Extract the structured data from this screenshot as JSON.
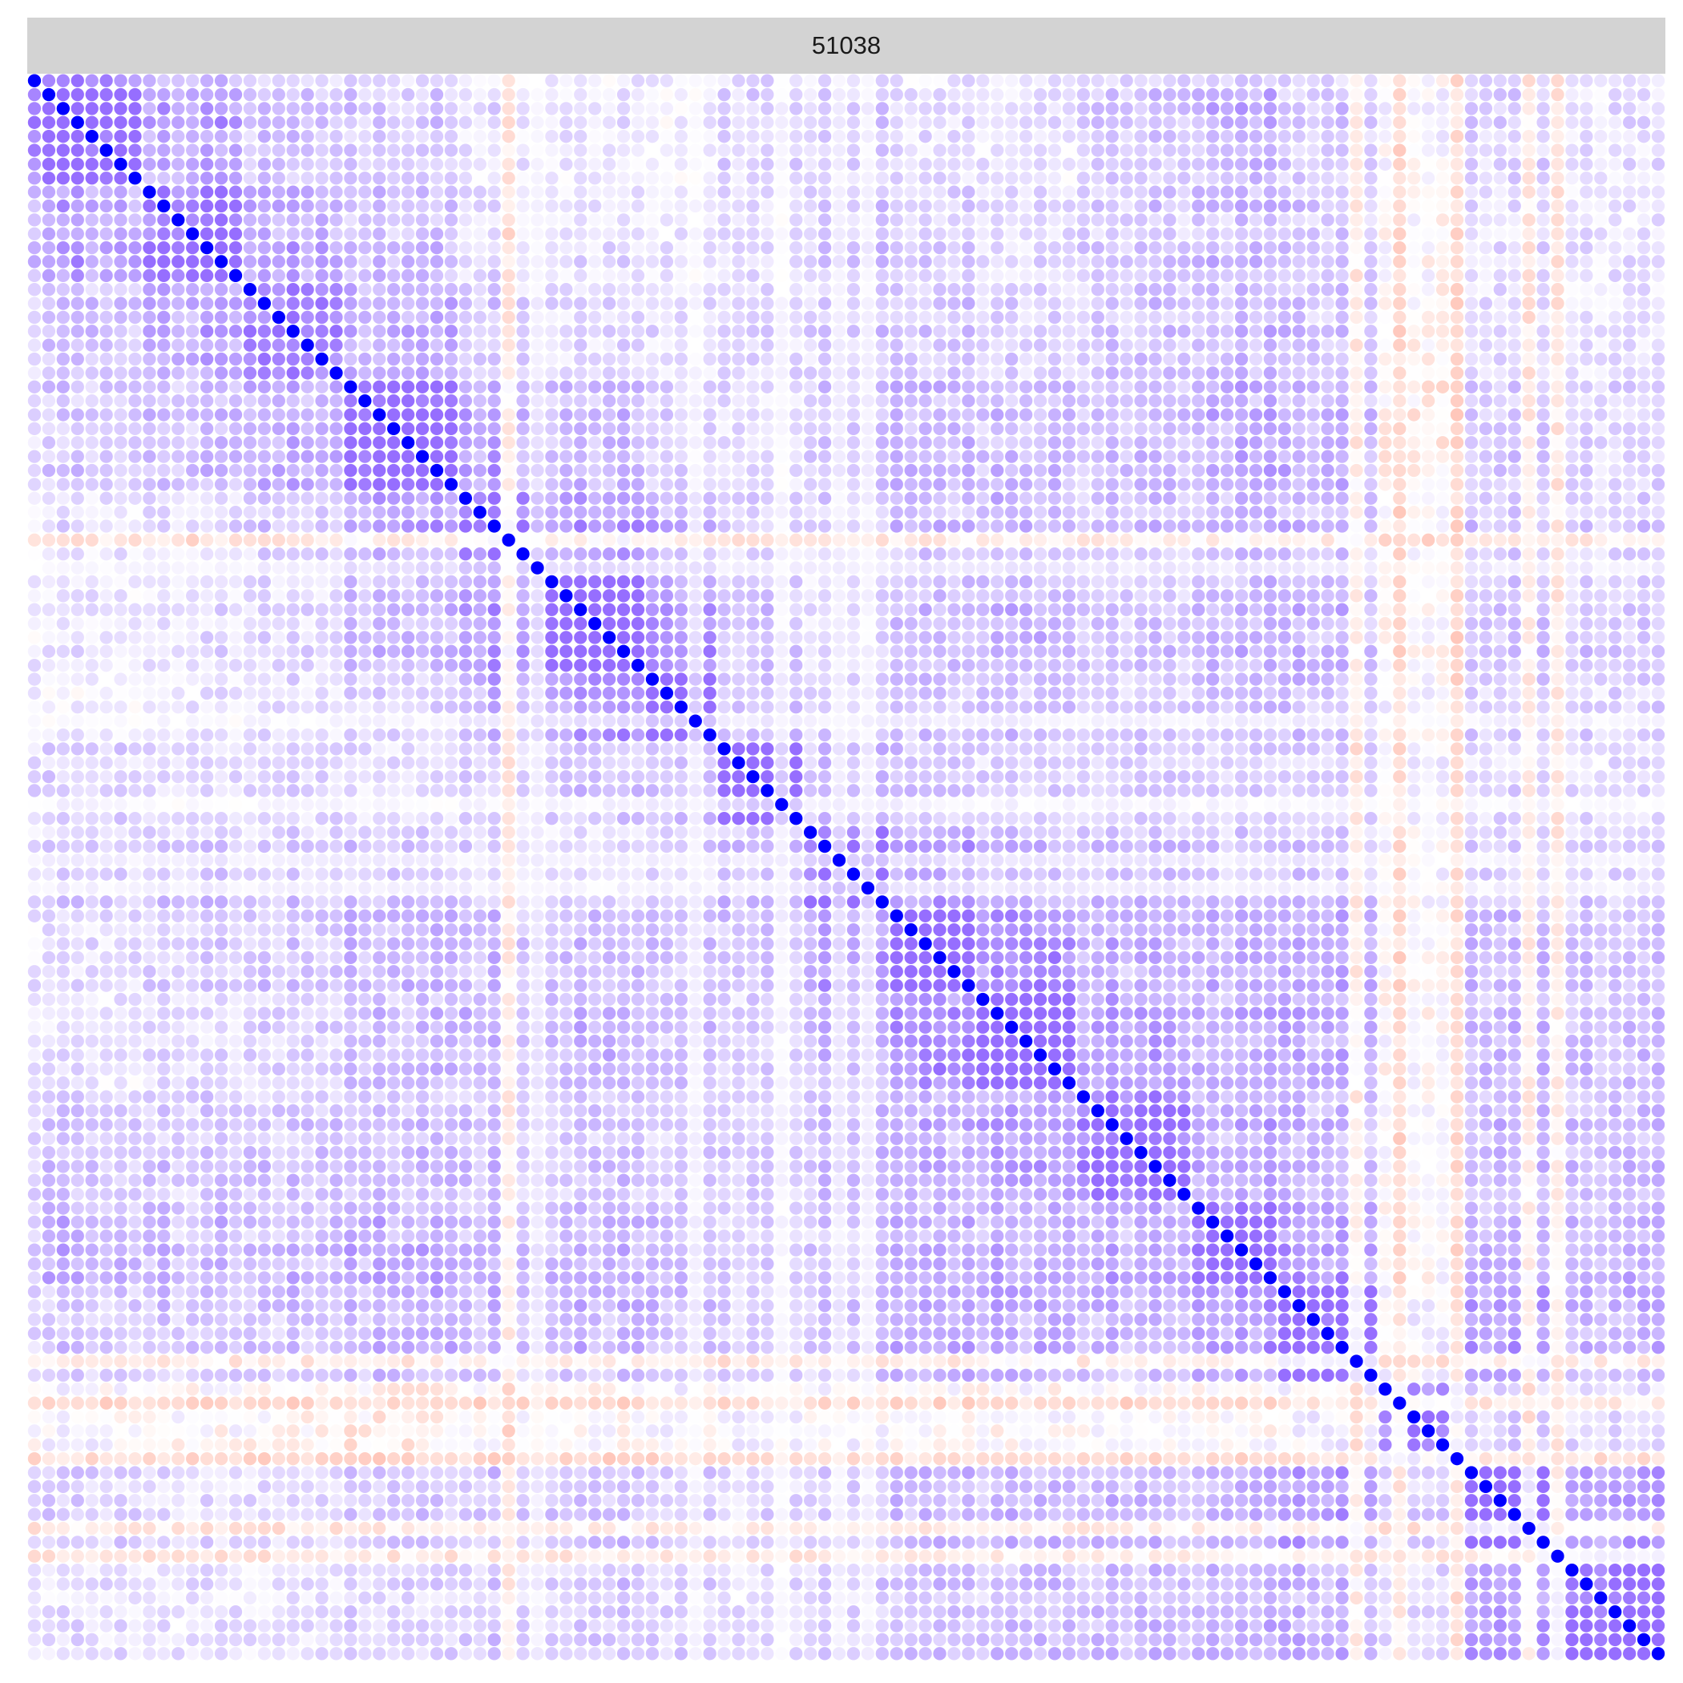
{
  "chart_data": {
    "type": "heatmap",
    "title": "",
    "facet_label": "51038",
    "marker": "circle",
    "matrix_size": 114,
    "value_range": [
      -1,
      1
    ],
    "diagonal_value": 1,
    "color_scale": {
      "low": "#ff0000",
      "mid": "#ffffff",
      "high": "#0000ff"
    },
    "axes_visible": false,
    "grid": false,
    "legend": "none",
    "block_boundaries": [
      0,
      8,
      15,
      22,
      30,
      36,
      43,
      48,
      54,
      60,
      66,
      73,
      81,
      87,
      94,
      100,
      106,
      114
    ],
    "block_strength": [
      [
        1.0,
        0.55,
        0.4,
        0.3,
        0.2,
        0.15,
        0.1,
        0.25,
        0.3,
        0.2,
        0.15,
        0.35,
        0.45,
        0.3,
        0.05,
        0.25,
        0.2
      ],
      [
        0.55,
        1.0,
        0.6,
        0.4,
        0.25,
        0.2,
        0.15,
        0.2,
        0.35,
        0.3,
        0.2,
        0.35,
        0.45,
        0.35,
        0.0,
        0.2,
        0.2
      ],
      [
        0.4,
        0.6,
        1.0,
        0.55,
        0.35,
        0.25,
        0.2,
        0.25,
        0.35,
        0.35,
        0.3,
        0.4,
        0.45,
        0.4,
        -0.05,
        0.25,
        0.2
      ],
      [
        0.3,
        0.4,
        0.55,
        1.0,
        0.55,
        0.4,
        0.25,
        0.2,
        0.35,
        0.4,
        0.35,
        0.4,
        0.5,
        0.45,
        -0.1,
        0.3,
        0.25
      ],
      [
        0.2,
        0.25,
        0.35,
        0.55,
        1.0,
        0.6,
        0.45,
        0.25,
        0.3,
        0.4,
        0.4,
        0.4,
        0.45,
        0.45,
        0.0,
        0.35,
        0.3
      ],
      [
        0.15,
        0.2,
        0.25,
        0.4,
        0.6,
        1.0,
        0.55,
        0.3,
        0.25,
        0.35,
        0.4,
        0.35,
        0.4,
        0.4,
        0.0,
        0.3,
        0.3
      ],
      [
        0.1,
        0.15,
        0.2,
        0.25,
        0.45,
        0.55,
        1.0,
        0.35,
        0.25,
        0.3,
        0.3,
        0.3,
        0.35,
        0.35,
        0.05,
        0.25,
        0.25
      ],
      [
        0.25,
        0.2,
        0.25,
        0.2,
        0.25,
        0.3,
        0.35,
        1.0,
        0.4,
        0.3,
        0.25,
        0.3,
        0.25,
        0.25,
        0.1,
        0.2,
        0.2
      ],
      [
        0.3,
        0.35,
        0.35,
        0.35,
        0.3,
        0.25,
        0.25,
        0.4,
        1.0,
        0.55,
        0.4,
        0.45,
        0.4,
        0.4,
        0.05,
        0.3,
        0.3
      ],
      [
        0.2,
        0.3,
        0.35,
        0.4,
        0.4,
        0.35,
        0.3,
        0.3,
        0.55,
        1.0,
        0.6,
        0.45,
        0.45,
        0.45,
        0.0,
        0.35,
        0.35
      ],
      [
        0.15,
        0.2,
        0.3,
        0.35,
        0.4,
        0.4,
        0.3,
        0.25,
        0.4,
        0.6,
        1.0,
        0.55,
        0.45,
        0.45,
        0.0,
        0.35,
        0.35
      ],
      [
        0.35,
        0.35,
        0.4,
        0.4,
        0.4,
        0.35,
        0.3,
        0.3,
        0.45,
        0.45,
        0.55,
        1.0,
        0.55,
        0.45,
        0.0,
        0.4,
        0.4
      ],
      [
        0.45,
        0.45,
        0.45,
        0.5,
        0.45,
        0.4,
        0.35,
        0.25,
        0.4,
        0.45,
        0.45,
        0.55,
        1.0,
        0.6,
        0.0,
        0.45,
        0.45
      ],
      [
        0.3,
        0.35,
        0.4,
        0.45,
        0.45,
        0.4,
        0.35,
        0.25,
        0.4,
        0.45,
        0.45,
        0.45,
        0.6,
        1.0,
        0.1,
        0.55,
        0.45
      ],
      [
        0.05,
        0.0,
        -0.05,
        -0.1,
        0.0,
        0.0,
        0.05,
        0.1,
        0.05,
        0.0,
        0.0,
        0.0,
        0.0,
        0.1,
        1.0,
        0.3,
        0.25
      ],
      [
        0.25,
        0.2,
        0.25,
        0.3,
        0.35,
        0.3,
        0.25,
        0.2,
        0.3,
        0.35,
        0.35,
        0.4,
        0.45,
        0.55,
        0.3,
        1.0,
        0.55
      ],
      [
        0.2,
        0.2,
        0.2,
        0.25,
        0.3,
        0.3,
        0.25,
        0.2,
        0.3,
        0.35,
        0.35,
        0.4,
        0.45,
        0.45,
        0.25,
        0.55,
        1.0
      ]
    ],
    "warm_rows": [
      33,
      92,
      99
    ],
    "warm_cols": [
      95,
      104,
      106
    ],
    "pale_rows": [
      46,
      52,
      58
    ],
    "pale_cols": [
      35,
      56
    ]
  }
}
